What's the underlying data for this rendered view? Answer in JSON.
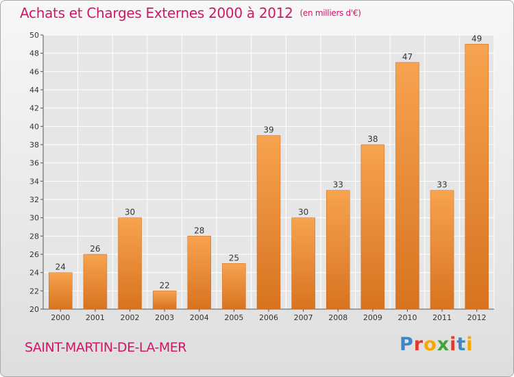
{
  "header": {
    "title": "Achats et Charges Externes 2000 à 2012",
    "unit": "(en milliers d'€)"
  },
  "footer": {
    "commune": "SAINT-MARTIN-DE-LA-MER",
    "brand": "Proxiti",
    "brand_colors": [
      "#3f86c9",
      "#e03a2f",
      "#f7a600",
      "#3fa535",
      "#e03a2f",
      "#3f86c9",
      "#f7a600"
    ]
  },
  "colors": {
    "bar_top": "#f7a34f",
    "bar_bottom": "#d8731f",
    "title": "#d01666",
    "grid": "#ffffff",
    "axis_text": "#333333"
  },
  "chart_data": {
    "type": "bar",
    "categories": [
      "2000",
      "2001",
      "2002",
      "2003",
      "2004",
      "2005",
      "2006",
      "2007",
      "2008",
      "2009",
      "2010",
      "2011",
      "2012"
    ],
    "values": [
      24,
      26,
      30,
      22,
      28,
      25,
      39,
      30,
      33,
      38,
      47,
      33,
      49
    ],
    "ylim": [
      20,
      50
    ],
    "yticks": [
      20,
      22,
      24,
      26,
      28,
      30,
      32,
      34,
      36,
      38,
      40,
      42,
      44,
      46,
      48,
      50
    ],
    "grid": true,
    "data_labels": true
  }
}
